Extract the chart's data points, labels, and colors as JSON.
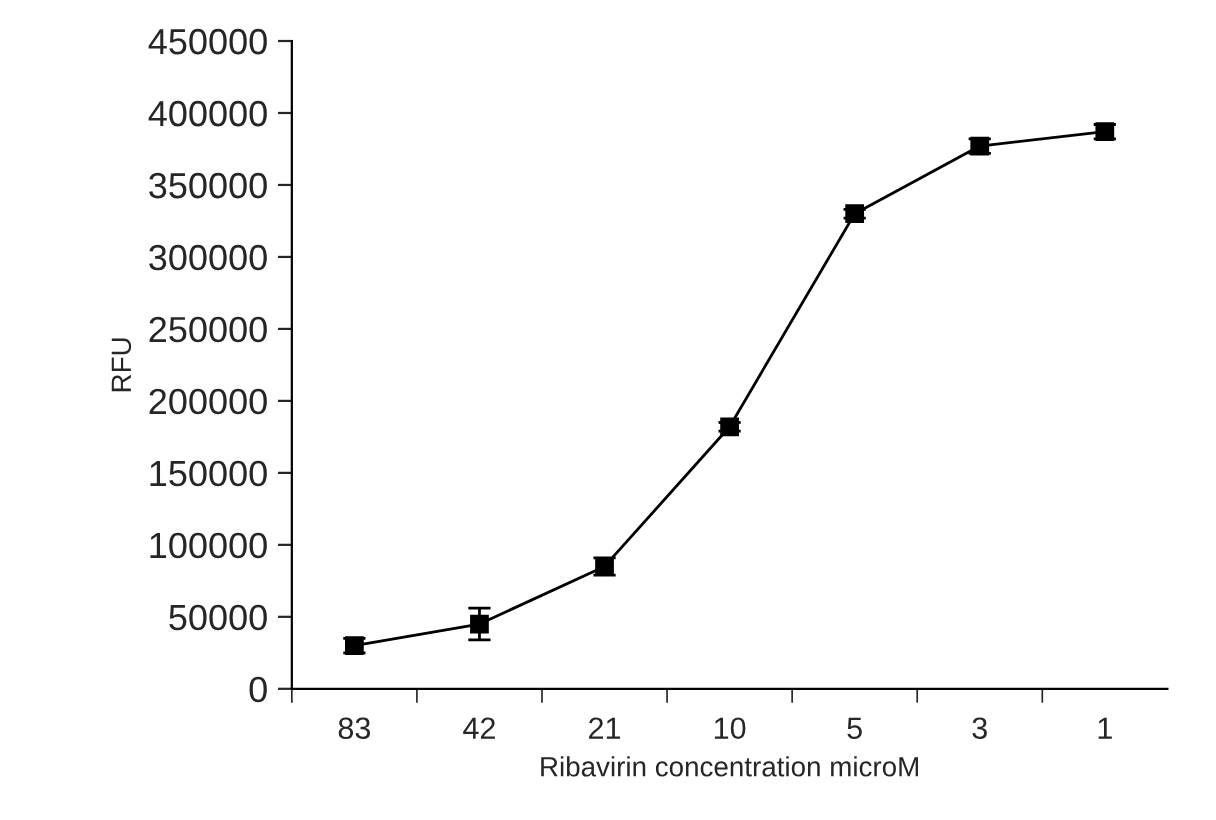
{
  "chart_data": {
    "type": "line",
    "xlabel": "Ribavirin concentration microM",
    "ylabel": "RFU",
    "categories": [
      "83",
      "42",
      "21",
      "10",
      "5",
      "3",
      "1"
    ],
    "series": [
      {
        "color": "#000000",
        "values": [
          30000,
          45000,
          85000,
          182000,
          330000,
          377000,
          387000
        ],
        "errors": [
          5000,
          11000,
          6000,
          3000,
          3000,
          5000,
          5000
        ]
      }
    ],
    "ylim": [
      0,
      450000
    ],
    "yticks": [
      0,
      50000,
      100000,
      150000,
      200000,
      250000,
      300000,
      350000,
      400000,
      450000
    ],
    "marker": "square",
    "line_style": "solid",
    "grid": false,
    "legend": false
  }
}
